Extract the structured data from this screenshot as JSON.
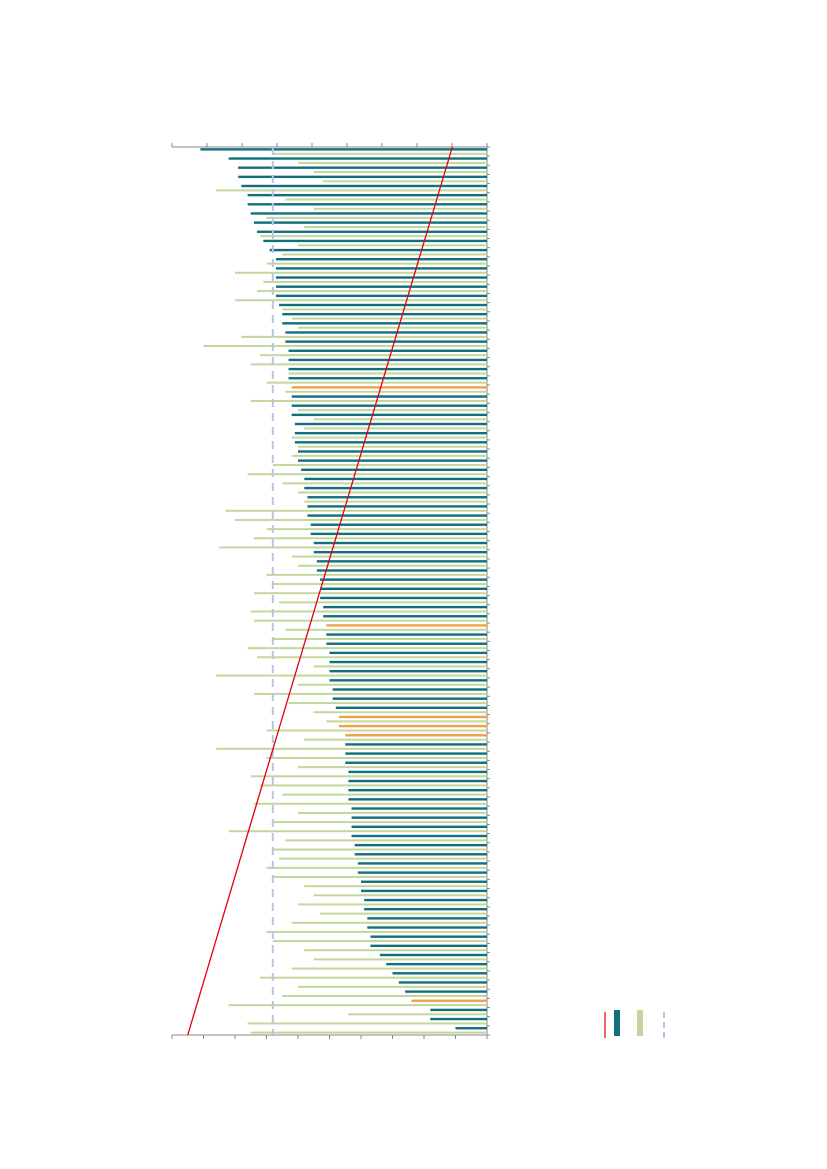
{
  "chart_data": {
    "type": "bar",
    "orientation": "horizontal",
    "xlim": [
      100,
      0
    ],
    "xticks": [
      0,
      10,
      20,
      30,
      40,
      50,
      60,
      70,
      80,
      90,
      100
    ],
    "x2lim": [
      90,
      0
    ],
    "x2ticks": [
      0,
      10,
      20,
      30,
      40,
      50,
      60,
      70,
      80,
      90
    ],
    "series": [
      {
        "color": "#13707a",
        "values": [
          91,
          82,
          79,
          79,
          78,
          76,
          76,
          75,
          74,
          73,
          71,
          69,
          67,
          67,
          67,
          67,
          67,
          66,
          65,
          65,
          64,
          64,
          63,
          63,
          63,
          63,
          null,
          62,
          62,
          62,
          61,
          61,
          61,
          60,
          60,
          59,
          58,
          58,
          57,
          57,
          57,
          56,
          56,
          55,
          55,
          54,
          54,
          53,
          53,
          53,
          52,
          52,
          null,
          51,
          51,
          50,
          50,
          50,
          50,
          49,
          49,
          48,
          null,
          null,
          null,
          45,
          45,
          45,
          44,
          44,
          44,
          44,
          43,
          43,
          43,
          43,
          42,
          42,
          41,
          41,
          40,
          40,
          39,
          39,
          38,
          38,
          37,
          37,
          34,
          32,
          30,
          28,
          26,
          null,
          18,
          18,
          10
        ]
      },
      {
        "color": "#f0a04b",
        "values": [
          null,
          null,
          null,
          null,
          null,
          null,
          null,
          null,
          null,
          null,
          null,
          null,
          null,
          null,
          null,
          null,
          null,
          null,
          null,
          null,
          null,
          null,
          null,
          null,
          null,
          null,
          62,
          null,
          null,
          null,
          null,
          null,
          null,
          null,
          null,
          null,
          null,
          null,
          null,
          null,
          null,
          null,
          null,
          null,
          null,
          null,
          null,
          null,
          null,
          null,
          null,
          null,
          51,
          null,
          null,
          null,
          null,
          null,
          null,
          null,
          null,
          null,
          47,
          47,
          45,
          null,
          null,
          null,
          null,
          null,
          null,
          null,
          null,
          null,
          null,
          null,
          null,
          null,
          null,
          null,
          null,
          null,
          null,
          null,
          null,
          null,
          null,
          null,
          null,
          null,
          null,
          null,
          null,
          24,
          null,
          null,
          null
        ]
      },
      {
        "color": "#c3d79c",
        "values": [
          68,
          60,
          55,
          52,
          86,
          64,
          55,
          70,
          58,
          72,
          60,
          65,
          70,
          80,
          71,
          73,
          80,
          65,
          62,
          60,
          78,
          90,
          72,
          75,
          63,
          70,
          64,
          75,
          60,
          55,
          58,
          62,
          60,
          62,
          68,
          76,
          65,
          60,
          58,
          83,
          80,
          70,
          74,
          85,
          62,
          60,
          70,
          68,
          74,
          66,
          75,
          74,
          64,
          68,
          76,
          73,
          55,
          86,
          60,
          74,
          63,
          55,
          51,
          70,
          58,
          86,
          70,
          60,
          75,
          72,
          65,
          74,
          60,
          68,
          82,
          64,
          68,
          66,
          70,
          68,
          58,
          55,
          60,
          53,
          62,
          70,
          68,
          58,
          55,
          62,
          72,
          60,
          65,
          82,
          44,
          76,
          75
        ]
      }
    ],
    "reference_line": {
      "color": "#e3000f",
      "values": [
        11,
        95
      ]
    },
    "threshold": {
      "color": "#b8c4e2",
      "value": 68
    }
  }
}
